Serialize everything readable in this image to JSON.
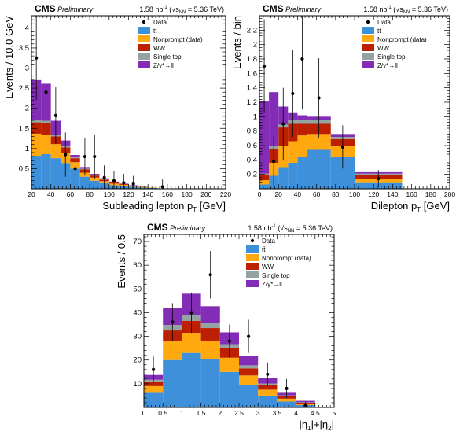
{
  "header": {
    "experiment": "CMS",
    "status": "Preliminary",
    "lumi_value": "1.58 nb",
    "lumi_exponent": "-1",
    "energy_open": "(√s",
    "energy_sub": "NN",
    "energy_value": " = 5.36 TeV)"
  },
  "legend": {
    "data": "Data",
    "ttbar": "tt̄",
    "nonprompt": "Nonprompt (data)",
    "ww": "WW",
    "singletop": "Single top",
    "dy": "Z/γ*→ll"
  },
  "colors": {
    "ttbar": "#3f90da",
    "nonprompt": "#ffa90e",
    "ww": "#bd1f01",
    "singletop": "#94a4a2",
    "dy": "#832db6"
  },
  "chart_data": [
    {
      "type": "bar",
      "stacked": true,
      "xlabel": "Subleading lepton p",
      "xlabel_sub": "T",
      "xlabel_unit": " [GeV]",
      "ylabel": "Events / 10.0 GeV",
      "xlim": [
        20,
        220
      ],
      "ylim": [
        0,
        4.3
      ],
      "xticks": [
        20,
        40,
        60,
        80,
        100,
        120,
        140,
        160,
        180,
        200,
        220
      ],
      "yticks": [
        0.5,
        1,
        1.5,
        2,
        2.5,
        3,
        3.5,
        4
      ],
      "bin_edges": [
        20,
        30,
        40,
        50,
        60,
        70,
        80,
        90,
        100,
        110,
        120,
        130,
        140,
        150,
        160,
        170,
        180,
        190,
        200,
        210,
        220
      ],
      "series": [
        {
          "key": "ttbar",
          "values": [
            0.82,
            0.86,
            0.76,
            0.64,
            0.5,
            0.3,
            0.2,
            0.14,
            0.09,
            0.07,
            0.05,
            0.03,
            0.02,
            0.01,
            0.01,
            0.01,
            0,
            0,
            0,
            0
          ]
        },
        {
          "key": "nonprompt",
          "values": [
            0.55,
            0.48,
            0.35,
            0.24,
            0.16,
            0.1,
            0.08,
            0.05,
            0.04,
            0.03,
            0.02,
            0.01,
            0.01,
            0,
            0,
            0,
            0,
            0,
            0,
            0
          ]
        },
        {
          "key": "ww",
          "values": [
            0.28,
            0.3,
            0.19,
            0.15,
            0.1,
            0.08,
            0.05,
            0.04,
            0.03,
            0.02,
            0.01,
            0.01,
            0,
            0,
            0,
            0,
            0,
            0,
            0,
            0
          ]
        },
        {
          "key": "singletop",
          "values": [
            0.05,
            0.05,
            0.04,
            0.03,
            0.02,
            0.02,
            0.01,
            0.01,
            0.01,
            0,
            0,
            0,
            0,
            0,
            0,
            0,
            0,
            0,
            0,
            0
          ]
        },
        {
          "key": "dy",
          "values": [
            1.0,
            0.92,
            0.35,
            0.14,
            0.06,
            0.04,
            0.03,
            0.02,
            0.01,
            0.01,
            0.01,
            0,
            0,
            0,
            0,
            0,
            0,
            0,
            0,
            0
          ]
        }
      ],
      "data_points": [
        {
          "x": 25,
          "y": 3.25,
          "err": 1.05
        },
        {
          "x": 35,
          "y": 2.4,
          "err": 0.8
        },
        {
          "x": 45,
          "y": 1.82,
          "err": 0.7
        },
        {
          "x": 55,
          "y": 0.85,
          "err": 0.55
        },
        {
          "x": 65,
          "y": 0.5,
          "err": 0.4
        },
        {
          "x": 75,
          "y": 0.8,
          "err": 0.45
        },
        {
          "x": 85,
          "y": 0.8,
          "err": 0.55
        },
        {
          "x": 95,
          "y": 0.28,
          "err": 0.3
        },
        {
          "x": 105,
          "y": 0.2,
          "err": 0.25
        },
        {
          "x": 115,
          "y": 0.15,
          "err": 0.22
        },
        {
          "x": 125,
          "y": 0.12,
          "err": 0.2
        },
        {
          "x": 155,
          "y": 0.05,
          "err": 0.18
        }
      ],
      "legend_placement": "top-right"
    },
    {
      "type": "bar",
      "stacked": true,
      "xlabel": "Dilepton p",
      "xlabel_sub": "T",
      "xlabel_unit": " [GeV]",
      "ylabel": "Events / bin",
      "xlim": [
        0,
        200
      ],
      "ylim": [
        0,
        2.4
      ],
      "xticks": [
        0,
        20,
        40,
        60,
        80,
        100,
        120,
        140,
        160,
        180,
        200
      ],
      "yticks": [
        0.2,
        0.4,
        0.6,
        0.8,
        1,
        1.2,
        1.4,
        1.6,
        1.8,
        2,
        2.2
      ],
      "bin_edges": [
        0,
        10,
        20,
        30,
        40,
        50,
        75,
        100,
        150,
        200
      ],
      "series": [
        {
          "key": "ttbar",
          "values": [
            0.06,
            0.18,
            0.3,
            0.36,
            0.44,
            0.54,
            0.44,
            0.08,
            0
          ]
        },
        {
          "key": "nonprompt",
          "values": [
            0.06,
            0.18,
            0.3,
            0.3,
            0.3,
            0.22,
            0.15,
            0.06,
            0
          ]
        },
        {
          "key": "ww",
          "values": [
            0.08,
            0.19,
            0.25,
            0.24,
            0.16,
            0.14,
            0.1,
            0.05,
            0
          ]
        },
        {
          "key": "singletop",
          "values": [
            0.01,
            0.04,
            0.04,
            0.05,
            0.05,
            0.05,
            0.03,
            0.02,
            0
          ]
        },
        {
          "key": "dy",
          "values": [
            1.0,
            0.75,
            0.25,
            0.1,
            0.07,
            0.05,
            0.04,
            0.02,
            0
          ]
        }
      ],
      "data_points": [
        {
          "x": 5,
          "y": 1.7,
          "err": 0.65
        },
        {
          "x": 15,
          "y": 0.38,
          "err": 0.35
        },
        {
          "x": 25,
          "y": 0.9,
          "err": 0.5
        },
        {
          "x": 35,
          "y": 1.32,
          "err": 0.6
        },
        {
          "x": 45,
          "y": 1.8,
          "err": 0.7
        },
        {
          "x": 62.5,
          "y": 1.26,
          "err": 0.55
        },
        {
          "x": 87.5,
          "y": 0.58,
          "err": 0.3
        },
        {
          "x": 125,
          "y": 0.14,
          "err": 0.12
        }
      ],
      "legend_placement": "top-right"
    },
    {
      "type": "bar",
      "stacked": true,
      "xlabel": "|η",
      "xlabel_sub": "1",
      "xlabel_mid": "|+|η",
      "xlabel_sub2": "2",
      "xlabel_end": "|",
      "ylabel": "Events / 0.5",
      "xlim": [
        0,
        5
      ],
      "ylim": [
        0,
        73
      ],
      "xticks": [
        0,
        0.5,
        1,
        1.5,
        2,
        2.5,
        3,
        3.5,
        4,
        4.5,
        5
      ],
      "yticks": [
        10,
        20,
        30,
        40,
        50,
        60,
        70
      ],
      "bin_edges": [
        0,
        0.5,
        1,
        1.5,
        2,
        2.5,
        3,
        3.5,
        4,
        4.5,
        5
      ],
      "series": [
        {
          "key": "ttbar",
          "values": [
            6.5,
            20.0,
            23.0,
            20.5,
            15.0,
            9.5,
            5.0,
            2.5,
            1.0,
            0
          ]
        },
        {
          "key": "nonprompt",
          "values": [
            2.5,
            8.0,
            8.5,
            7.5,
            6.0,
            4.0,
            2.5,
            1.2,
            0.6,
            0
          ]
        },
        {
          "key": "ww",
          "values": [
            2.0,
            4.5,
            5.0,
            5.5,
            4.0,
            3.0,
            1.8,
            1.0,
            0.4,
            0
          ]
        },
        {
          "key": "singletop",
          "values": [
            0.7,
            2.3,
            2.5,
            2.2,
            1.7,
            1.3,
            0.8,
            0.4,
            0.2,
            0
          ]
        },
        {
          "key": "dy",
          "values": [
            2.0,
            7.0,
            9.0,
            7.0,
            5.0,
            4.0,
            2.4,
            1.4,
            0.6,
            0
          ]
        }
      ],
      "data_points": [
        {
          "x": 0.25,
          "y": 16,
          "err": 5.5
        },
        {
          "x": 0.75,
          "y": 36,
          "err": 8.0
        },
        {
          "x": 1.25,
          "y": 40,
          "err": 8.5
        },
        {
          "x": 1.75,
          "y": 56,
          "err": 10.0
        },
        {
          "x": 2.25,
          "y": 28,
          "err": 7.0
        },
        {
          "x": 2.75,
          "y": 30,
          "err": 7.0
        },
        {
          "x": 3.25,
          "y": 14,
          "err": 5.0
        },
        {
          "x": 3.75,
          "y": 8,
          "err": 4.0
        },
        {
          "x": 4.25,
          "y": 1,
          "err": 1.5
        }
      ],
      "legend_placement": "top-right"
    }
  ]
}
